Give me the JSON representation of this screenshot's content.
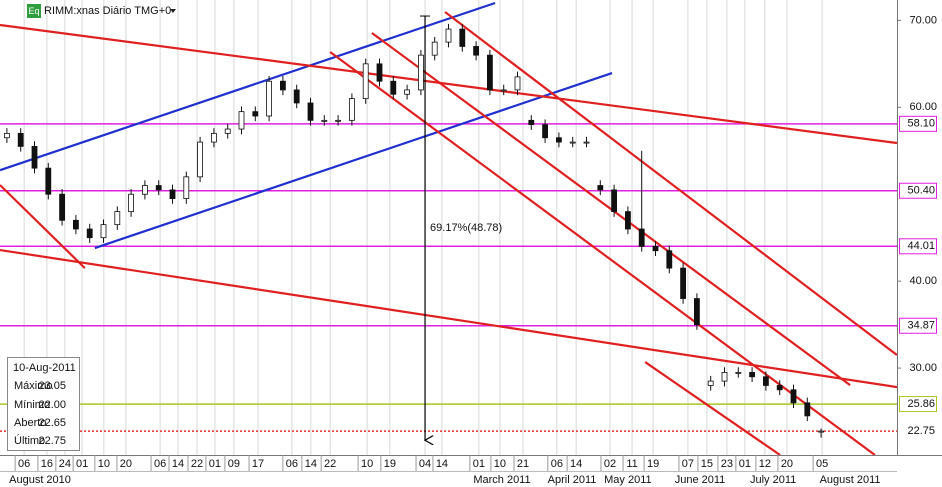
{
  "chart_data": {
    "type": "candlestick",
    "title": "RIMM:xnas Diário TMG+0",
    "badge": "Eq",
    "xlim": [
      0,
      260
    ],
    "ylim": [
      20,
      72
    ],
    "x": [
      2,
      6,
      10,
      14,
      18,
      22,
      26,
      30,
      34,
      38,
      42,
      46,
      50,
      54,
      58,
      62,
      66,
      70,
      74,
      78,
      82,
      86,
      90,
      94,
      98,
      102,
      106,
      110,
      114,
      118,
      122,
      126,
      130,
      134,
      138,
      142,
      146,
      150,
      154,
      158,
      162,
      166,
      170,
      174,
      178,
      182,
      186,
      190,
      194,
      198,
      202,
      206,
      210,
      214,
      218,
      222,
      226,
      230,
      234,
      238
    ],
    "open": [
      56.5,
      57,
      55.5,
      53,
      50,
      47,
      46,
      45,
      46.5,
      48,
      50,
      51,
      50.5,
      49.5,
      52,
      56,
      57,
      57.5,
      59.5,
      59,
      63,
      62,
      60.5,
      58.5,
      58.5,
      58.5,
      61,
      65,
      63,
      61.5,
      62,
      66,
      67.5,
      69,
      67,
      66,
      62,
      62,
      58.5,
      58,
      56.5,
      56,
      56,
      51,
      50.5,
      48,
      46,
      44,
      43.5,
      41.5,
      38,
      28,
      28.5,
      29.5,
      29.5,
      29,
      28,
      27.5,
      26,
      22.65
    ],
    "high": [
      57.6,
      57.6,
      56.1,
      53.6,
      50.6,
      47.6,
      46.6,
      47.1,
      48.6,
      50.6,
      51.6,
      51.6,
      51.1,
      52.6,
      56.6,
      57.6,
      58.1,
      60.1,
      60.1,
      63.6,
      63.6,
      62.6,
      61.1,
      59.1,
      59.1,
      61.6,
      65.6,
      65.6,
      63.6,
      62.6,
      66.6,
      68.1,
      69.6,
      69.6,
      67.6,
      66.6,
      62.6,
      64.1,
      59.1,
      58.6,
      57.1,
      56.6,
      56.6,
      51.6,
      51.1,
      48.6,
      55,
      44.6,
      44.1,
      42.1,
      38.6,
      29.1,
      30.1,
      30.1,
      30.1,
      29.6,
      28.6,
      28.1,
      26.6,
      23.05
    ],
    "low": [
      55.9,
      54.9,
      52.4,
      49.4,
      46.4,
      45.4,
      44.4,
      44.4,
      45.9,
      47.4,
      49.4,
      49.9,
      48.9,
      48.9,
      51.4,
      55.4,
      56.4,
      56.9,
      58.4,
      58.4,
      61.4,
      59.9,
      57.9,
      57.9,
      57.9,
      57.9,
      60.4,
      62.4,
      60.9,
      60.9,
      61.4,
      65.4,
      66.9,
      66.4,
      65.4,
      61.4,
      61.4,
      61.4,
      57.4,
      55.9,
      55.4,
      55.4,
      55.4,
      49.9,
      47.4,
      45.4,
      43.4,
      42.9,
      40.9,
      37.4,
      34.4,
      27.4,
      27.9,
      28.9,
      28.4,
      27.4,
      26.9,
      25.4,
      23.9,
      22.0
    ],
    "close": [
      57,
      55.5,
      53,
      50,
      47,
      46,
      45,
      46.5,
      48,
      50,
      51,
      50.5,
      49.5,
      52,
      56,
      57,
      57.5,
      59.5,
      59,
      63,
      62,
      60.5,
      58.5,
      58.5,
      58.5,
      61,
      65,
      63,
      61.5,
      62,
      66,
      67.5,
      69,
      67,
      66,
      62,
      62,
      63.5,
      58,
      56.5,
      56,
      56,
      56,
      50.5,
      48,
      46,
      44,
      43.5,
      41.5,
      38,
      35,
      28.5,
      29.5,
      29.5,
      29,
      28,
      27.5,
      26,
      24.5,
      22.75
    ],
    "yticks": [
      {
        "value": 70,
        "label": "70.00"
      },
      {
        "value": 60,
        "label": "60.00"
      },
      {
        "value": 40,
        "label": "40.00"
      },
      {
        "value": 30,
        "label": "30.00"
      }
    ],
    "xticks": [
      {
        "value": 7.0,
        "label": "06"
      },
      {
        "value": 13.6,
        "label": "16"
      },
      {
        "value": 18.8,
        "label": "24"
      },
      {
        "value": 23.8,
        "label": "01"
      },
      {
        "value": 30.1,
        "label": "10"
      },
      {
        "value": 36.5,
        "label": "20"
      },
      {
        "value": 46.4,
        "label": "06"
      },
      {
        "value": 51.6,
        "label": "14"
      },
      {
        "value": 57.1,
        "label": "22"
      },
      {
        "value": 62.3,
        "label": "01"
      },
      {
        "value": 67.8,
        "label": "09"
      },
      {
        "value": 74.8,
        "label": "17"
      },
      {
        "value": 84.6,
        "label": "06"
      },
      {
        "value": 90.1,
        "label": "14"
      },
      {
        "value": 95.7,
        "label": "22"
      },
      {
        "value": 106.4,
        "label": "10"
      },
      {
        "value": 113.0,
        "label": "19"
      },
      {
        "value": 123.2,
        "label": "04"
      },
      {
        "value": 128.1,
        "label": "14"
      },
      {
        "value": 138.8,
        "label": "01"
      },
      {
        "value": 144.9,
        "label": "10"
      },
      {
        "value": 151.6,
        "label": "21"
      },
      {
        "value": 161.4,
        "label": "06"
      },
      {
        "value": 167.0,
        "label": "14"
      },
      {
        "value": 176.8,
        "label": "02"
      },
      {
        "value": 183.2,
        "label": "11"
      },
      {
        "value": 189.3,
        "label": "19"
      },
      {
        "value": 199.4,
        "label": "07"
      },
      {
        "value": 204.9,
        "label": "15"
      },
      {
        "value": 210.7,
        "label": "23"
      },
      {
        "value": 215.9,
        "label": "01"
      },
      {
        "value": 221.7,
        "label": "12"
      },
      {
        "value": 228.1,
        "label": "20"
      },
      {
        "value": 238.3,
        "label": "05"
      }
    ],
    "months": [
      {
        "value": 11.6,
        "label": "August 2010"
      },
      {
        "value": 145.5,
        "label": "March 2011"
      },
      {
        "value": 165.8,
        "label": "April 2011"
      },
      {
        "value": 182,
        "label": "May 2011"
      },
      {
        "value": 202.9,
        "label": "June 2011"
      },
      {
        "value": 224.1,
        "label": "July 2011"
      },
      {
        "value": 246.4,
        "label": "August 2011"
      }
    ],
    "grid": true,
    "hlines": [
      {
        "value": 58.1,
        "label": "58.10",
        "color": "#e020e0"
      },
      {
        "value": 50.4,
        "label": "50.40",
        "color": "#e020e0"
      },
      {
        "value": 44.01,
        "label": "44.01",
        "color": "#e020e0"
      },
      {
        "value": 34.87,
        "label": "34.87",
        "color": "#e020e0"
      },
      {
        "value": 25.86,
        "label": "25.86",
        "color": "#a8c820"
      },
      {
        "value": 22.75,
        "label": "22.75",
        "color": "#e03030",
        "dash": true
      }
    ],
    "trendlines": [
      {
        "color": "#2030d0",
        "points": [
          [
            0,
            52.77
          ],
          [
            143.5,
            72.0
          ]
        ]
      },
      {
        "color": "#2030d0",
        "points": [
          [
            27.5,
            43.81
          ],
          [
            177.4,
            63.94
          ]
        ]
      },
      {
        "color": "#e02020",
        "points": [
          [
            0,
            69.47
          ],
          [
            260,
            55.89
          ]
        ]
      },
      {
        "color": "#e02020",
        "points": [
          [
            0,
            43.58
          ],
          [
            260,
            27.81
          ]
        ]
      },
      {
        "color": "#e02020",
        "points": [
          [
            0,
            51.06
          ],
          [
            24.6,
            41.5
          ]
        ]
      },
      {
        "color": "#e02020",
        "points": [
          [
            129.0,
            70.96
          ],
          [
            260,
            31.5
          ]
        ]
      },
      {
        "color": "#e02020",
        "points": [
          [
            107.8,
            68.55
          ],
          [
            246.4,
            28.04
          ]
        ]
      },
      {
        "color": "#e02020",
        "points": [
          [
            95.7,
            66.36
          ],
          [
            253.6,
            20.0
          ]
        ]
      },
      {
        "color": "#e02020",
        "points": [
          [
            187.0,
            30.69
          ],
          [
            226.1,
            20.0
          ]
        ]
      }
    ],
    "measure": {
      "x": 123.2,
      "from": 70.5,
      "to": 21.7,
      "label": "69.17%(48.78)"
    },
    "info_box": {
      "date": "10-Aug-2011",
      "rows": [
        {
          "label": "Máximo",
          "value": "23.05"
        },
        {
          "label": "Mínimo",
          "value": "22.00"
        },
        {
          "label": "Aberto",
          "value": "22.65"
        },
        {
          "label": "Último",
          "value": "22.75"
        }
      ]
    }
  }
}
